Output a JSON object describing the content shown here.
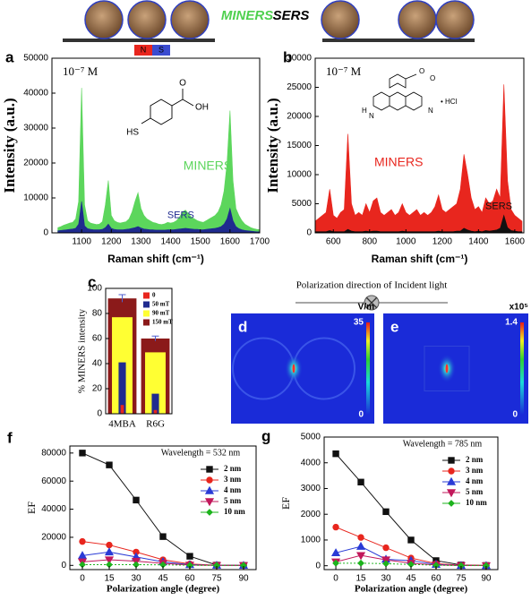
{
  "illustration": {
    "left_label": "MINERS",
    "right_label": "SERS",
    "magnet_north": "N",
    "magnet_south": "S"
  },
  "polarization_caption": "Polarization direction of Incident light",
  "chart_data": [
    {
      "panel": "a",
      "type": "area",
      "concentration": "10⁻⁷ M",
      "structure_labels": [
        "HS",
        "OH",
        "O"
      ],
      "xlabel": "Raman shift (cm⁻¹)",
      "ylabel": "Intensity (a.u.)",
      "x": [
        1020,
        1030,
        1040,
        1050,
        1060,
        1070,
        1080,
        1090,
        1100,
        1110,
        1120,
        1130,
        1140,
        1150,
        1160,
        1170,
        1180,
        1190,
        1200,
        1210,
        1220,
        1230,
        1240,
        1250,
        1260,
        1270,
        1280,
        1290,
        1300,
        1310,
        1320,
        1330,
        1340,
        1350,
        1360,
        1370,
        1380,
        1390,
        1400,
        1410,
        1420,
        1430,
        1440,
        1450,
        1460,
        1470,
        1480,
        1490,
        1500,
        1510,
        1520,
        1530,
        1540,
        1550,
        1560,
        1570,
        1580,
        1590,
        1600,
        1610,
        1620,
        1630,
        1640,
        1650,
        1660,
        1670,
        1680,
        1690,
        1700
      ],
      "series": [
        {
          "name": "MINERS",
          "color": "#5cd65c",
          "values": [
            1500,
            1800,
            2200,
            2500,
            2800,
            3000,
            4000,
            9000,
            41500,
            8000,
            3500,
            2800,
            2600,
            2400,
            2500,
            3200,
            8000,
            15000,
            5000,
            3500,
            3000,
            2800,
            3000,
            3200,
            4000,
            6000,
            9000,
            11500,
            7000,
            5000,
            4000,
            3500,
            3000,
            2800,
            2500,
            2400,
            2600,
            3000,
            2800,
            3000,
            3500,
            4500,
            6000,
            6500,
            5500,
            4500,
            4000,
            3500,
            3200,
            3000,
            3500,
            4000,
            4500,
            5000,
            6000,
            8000,
            12000,
            20000,
            35000,
            15000,
            7000,
            5000,
            3500,
            2500,
            2000,
            1500,
            1200,
            1000,
            900
          ]
        },
        {
          "name": "SERS",
          "color": "#1f2b8f",
          "values": [
            600,
            700,
            800,
            900,
            1000,
            1100,
            1300,
            2500,
            9000,
            2000,
            1200,
            1000,
            900,
            900,
            900,
            1000,
            1500,
            2500,
            1300,
            1000,
            900,
            900,
            900,
            1000,
            1100,
            1300,
            1500,
            1800,
            1400,
            1100,
            1000,
            900,
            900,
            800,
            800,
            800,
            800,
            900,
            900,
            900,
            1000,
            1100,
            1200,
            1300,
            1200,
            1100,
            1000,
            1000,
            900,
            900,
            1000,
            1100,
            1200,
            1300,
            1500,
            1800,
            2500,
            4000,
            7000,
            3500,
            1800,
            1200,
            900,
            700,
            600,
            500,
            400,
            300,
            300
          ]
        }
      ],
      "xlim": [
        1000,
        1700
      ],
      "xticks": [
        1100,
        1200,
        1300,
        1400,
        1500,
        1600,
        1700
      ],
      "ylim": [
        0,
        50000
      ],
      "yticks": [
        0,
        10000,
        20000,
        30000,
        40000,
        50000
      ]
    },
    {
      "panel": "b",
      "type": "area",
      "concentration": "10⁻⁷ M",
      "structure_labels": [
        "O",
        "O",
        "N",
        "H",
        "N",
        "• HCl"
      ],
      "xlabel": "Raman shift (cm⁻¹)",
      "ylabel": "Intensity (a.u.)",
      "x": [
        500,
        520,
        540,
        560,
        580,
        600,
        620,
        640,
        660,
        680,
        700,
        720,
        740,
        760,
        780,
        800,
        820,
        840,
        860,
        880,
        900,
        920,
        940,
        960,
        980,
        1000,
        1020,
        1040,
        1060,
        1080,
        1100,
        1120,
        1140,
        1160,
        1180,
        1200,
        1220,
        1240,
        1260,
        1280,
        1300,
        1320,
        1340,
        1360,
        1380,
        1400,
        1420,
        1440,
        1460,
        1480,
        1500,
        1520,
        1540,
        1560,
        1580,
        1600,
        1620,
        1640
      ],
      "series": [
        {
          "name": "MINERS",
          "color": "#e8261e",
          "values": [
            2000,
            2500,
            3000,
            3500,
            7500,
            3000,
            2500,
            3500,
            4000,
            17000,
            5000,
            3000,
            3500,
            3000,
            5000,
            3500,
            5500,
            6000,
            3500,
            3000,
            3500,
            4000,
            3000,
            3500,
            5000,
            3500,
            3000,
            3500,
            4000,
            3000,
            3500,
            3000,
            3500,
            4500,
            6500,
            4000,
            3500,
            4000,
            4500,
            5000,
            7500,
            13500,
            10000,
            6000,
            4000,
            4500,
            3500,
            6000,
            5000,
            5500,
            7500,
            6000,
            25500,
            9000,
            4000,
            3000,
            2500,
            2000
          ]
        },
        {
          "name": "SERS",
          "color": "#111111",
          "values": [
            200,
            200,
            200,
            200,
            400,
            200,
            200,
            200,
            200,
            600,
            300,
            200,
            200,
            200,
            300,
            200,
            300,
            300,
            200,
            200,
            200,
            200,
            200,
            200,
            300,
            200,
            200,
            200,
            200,
            200,
            200,
            200,
            200,
            200,
            300,
            200,
            200,
            200,
            200,
            300,
            300,
            800,
            500,
            300,
            200,
            300,
            200,
            400,
            300,
            400,
            500,
            800,
            3000,
            900,
            400,
            300,
            200,
            200
          ]
        }
      ],
      "xlim": [
        500,
        1650
      ],
      "xticks": [
        600,
        800,
        1000,
        1200,
        1400,
        1600
      ],
      "ylim": [
        0,
        30000
      ],
      "yticks": [
        0,
        5000,
        10000,
        15000,
        20000,
        25000,
        30000
      ]
    },
    {
      "panel": "c",
      "type": "bar",
      "ylabel": "% MINERS intensity",
      "categories": [
        "4MBA",
        "R6G"
      ],
      "series": [
        {
          "name": "0",
          "color": "#e8261e",
          "values": [
            7,
            3
          ]
        },
        {
          "name": "50 mT",
          "color": "#1f2b8f",
          "values": [
            41,
            16
          ]
        },
        {
          "name": "90 mT",
          "color": "#ffff33",
          "values": [
            77,
            49
          ]
        },
        {
          "name": "150 mT",
          "color": "#8b1a1a",
          "values": [
            92,
            60
          ],
          "errors": [
            3,
            2
          ]
        }
      ],
      "ylim": [
        0,
        100
      ],
      "yticks": [
        0,
        20,
        40,
        60,
        80,
        100
      ]
    },
    {
      "panel": "d",
      "type": "field-map",
      "colorbar_label": "V/m",
      "clim": [
        0,
        35
      ],
      "colorbar_ticks": [
        0,
        35
      ]
    },
    {
      "panel": "e",
      "type": "field-map",
      "colorbar_label": "x10⁵",
      "clim": [
        0,
        1.4
      ],
      "colorbar_ticks": [
        0,
        1.4
      ]
    },
    {
      "panel": "f",
      "type": "line",
      "annotation": "Wavelength = 532 nm",
      "xlabel": "Polarization angle (degree)",
      "ylabel": "EF",
      "x": [
        0,
        15,
        30,
        45,
        60,
        75,
        90
      ],
      "series": [
        {
          "name": "2 nm",
          "color": "#111111",
          "values": [
            80000,
            71500,
            46500,
            20500,
            6500,
            200,
            0
          ]
        },
        {
          "name": "3 nm",
          "color": "#e8261e",
          "values": [
            17000,
            14500,
            9500,
            4000,
            1000,
            100,
            0
          ]
        },
        {
          "name": "4 nm",
          "color": "#2a3bd6",
          "values": [
            7000,
            9500,
            6000,
            2500,
            500,
            50,
            0
          ]
        },
        {
          "name": "5 nm",
          "color": "#c2185b",
          "values": [
            2500,
            4000,
            3000,
            1500,
            200,
            0,
            0
          ]
        },
        {
          "name": "10 nm",
          "color": "#1db31d",
          "values": [
            500,
            500,
            500,
            400,
            100,
            0,
            0
          ]
        }
      ],
      "xlim": [
        -7,
        97
      ],
      "xticks": [
        0,
        15,
        30,
        45,
        60,
        75,
        90
      ],
      "ylim": [
        -3000,
        85000
      ],
      "yticks": [
        0,
        20000,
        40000,
        60000,
        80000
      ]
    },
    {
      "panel": "g",
      "type": "line",
      "annotation": "Wavelength = 785 nm",
      "xlabel": "Polarization angle (degree)",
      "ylabel": "EF",
      "x": [
        0,
        15,
        30,
        45,
        60,
        75,
        90
      ],
      "series": [
        {
          "name": "2 nm",
          "color": "#111111",
          "values": [
            4350,
            3250,
            2100,
            1000,
            200,
            30,
            10
          ]
        },
        {
          "name": "3 nm",
          "color": "#e8261e",
          "values": [
            1500,
            1100,
            700,
            300,
            80,
            20,
            10
          ]
        },
        {
          "name": "4 nm",
          "color": "#2a3bd6",
          "values": [
            500,
            750,
            250,
            200,
            50,
            10,
            5
          ]
        },
        {
          "name": "5 nm",
          "color": "#c2185b",
          "values": [
            150,
            400,
            230,
            100,
            30,
            10,
            5
          ]
        },
        {
          "name": "10 nm",
          "color": "#1db31d",
          "values": [
            100,
            100,
            80,
            50,
            20,
            5,
            5
          ]
        }
      ],
      "xlim": [
        -7,
        97
      ],
      "xticks": [
        0,
        15,
        30,
        45,
        60,
        75,
        90
      ],
      "ylim": [
        -150,
        5000
      ],
      "yticks": [
        0,
        1000,
        2000,
        3000,
        4000,
        5000
      ]
    }
  ]
}
